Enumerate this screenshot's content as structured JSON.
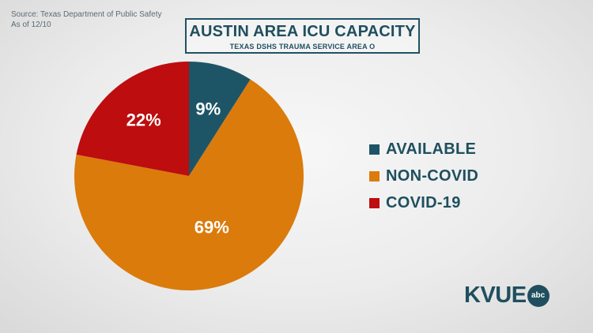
{
  "source": {
    "line1": "Source: Texas Department of Public Safety",
    "line2": "As of 12/10"
  },
  "header": {
    "title": "AUSTIN AREA ICU CAPACITY",
    "subtitle": "TEXAS DSHS TRAUMA SERVICE AREA O"
  },
  "chart_data": {
    "type": "pie",
    "title": "AUSTIN AREA ICU CAPACITY",
    "subtitle": "TEXAS DSHS TRAUMA SERVICE AREA O",
    "legend_position": "right",
    "slices": [
      {
        "label": "AVAILABLE",
        "value": 9,
        "display": "9%",
        "color": "#1d5567"
      },
      {
        "label": "NON-COVID",
        "value": 69,
        "display": "69%",
        "color": "#db7b0c"
      },
      {
        "label": "COVID-19",
        "value": 22,
        "display": "22%",
        "color": "#bd0d0f"
      }
    ]
  },
  "logo": {
    "text": "KVUE",
    "badge": "abc"
  },
  "colors": {
    "accent": "#1f4f5e",
    "available": "#1d5567",
    "non_covid": "#db7b0c",
    "covid": "#bd0d0f"
  }
}
